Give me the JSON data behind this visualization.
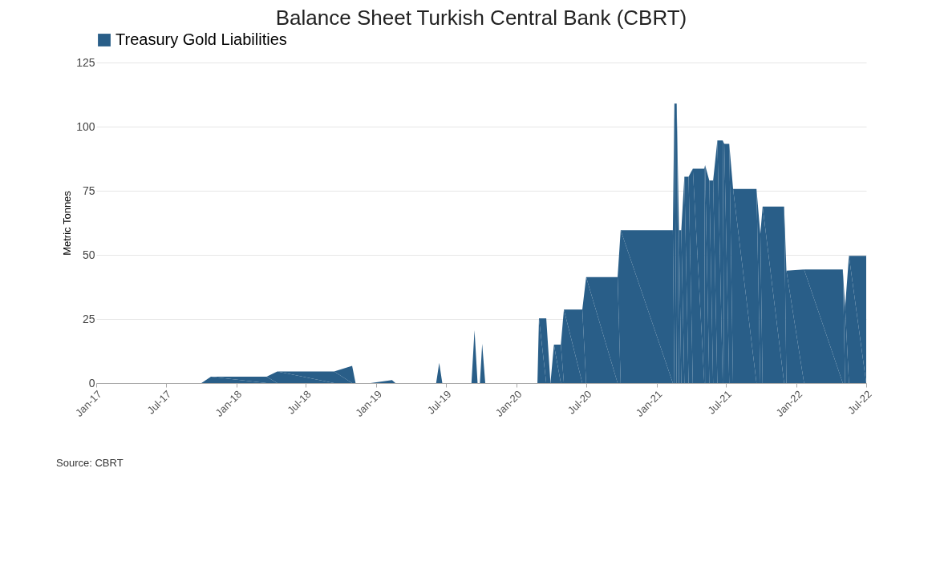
{
  "chart_data": {
    "type": "area",
    "title": "Balance Sheet Turkish Central Bank (CBRT)",
    "ylabel": "Metric Tonnes",
    "x": [
      "2017-01-01",
      "2017-10-02",
      "2017-10-27",
      "2018-03-21",
      "2018-04-18",
      "2018-09-13",
      "2018-10-30",
      "2018-11-08",
      "2018-12-17",
      "2019-02-11",
      "2019-02-20",
      "2019-06-06",
      "2019-06-14",
      "2019-06-22",
      "2019-09-06",
      "2019-09-14",
      "2019-09-22",
      "2019-09-28",
      "2019-10-04",
      "2019-10-12",
      "2020-02-25",
      "2020-02-29",
      "2020-03-19",
      "2020-03-30",
      "2020-04-08",
      "2020-04-26",
      "2020-05-04",
      "2020-06-21",
      "2020-07-01",
      "2020-09-21",
      "2020-09-29",
      "2021-02-12",
      "2021-02-16",
      "2021-02-22",
      "2021-02-28",
      "2021-03-06",
      "2021-03-14",
      "2021-03-25",
      "2021-04-05",
      "2021-05-05",
      "2021-05-07",
      "2021-05-18",
      "2021-05-28",
      "2021-06-08",
      "2021-06-22",
      "2021-06-26",
      "2021-07-09",
      "2021-07-19",
      "2021-09-18",
      "2021-09-28",
      "2021-10-04",
      "2021-11-29",
      "2021-12-05",
      "2022-01-20",
      "2022-05-01",
      "2022-05-07",
      "2022-05-17",
      "2022-07-01"
    ],
    "series": [
      {
        "name": "Treasury Gold Liabilities",
        "color": "#295e88",
        "values": [
          0,
          0,
          2.5,
          2.5,
          4.5,
          4.5,
          6.7,
          0,
          0,
          1.2,
          0,
          0,
          7.9,
          0,
          0,
          20.6,
          0,
          0,
          15.3,
          0,
          0,
          25.2,
          25.2,
          0,
          15,
          15,
          28.7,
          28.7,
          41.3,
          41.3,
          59.6,
          59.6,
          109,
          109,
          59.6,
          59.6,
          80.5,
          80.5,
          83.6,
          83.6,
          85,
          79,
          79,
          94.6,
          94.6,
          93.3,
          93.3,
          75.7,
          75.7,
          58.1,
          68.8,
          68.8,
          43.8,
          44.3,
          44.3,
          29.6,
          49.6,
          49.6
        ]
      }
    ],
    "xlim": [
      "2017-01-01",
      "2022-07-01"
    ],
    "xticks": [
      {
        "value": "2017-01-01",
        "label": "Jan-17"
      },
      {
        "value": "2017-07-01",
        "label": "Jul-17"
      },
      {
        "value": "2018-01-01",
        "label": "Jan-18"
      },
      {
        "value": "2018-07-01",
        "label": "Jul-18"
      },
      {
        "value": "2019-01-01",
        "label": "Jan-19"
      },
      {
        "value": "2019-07-01",
        "label": "Jul-19"
      },
      {
        "value": "2020-01-01",
        "label": "Jan-20"
      },
      {
        "value": "2020-07-01",
        "label": "Jul-20"
      },
      {
        "value": "2021-01-01",
        "label": "Jan-21"
      },
      {
        "value": "2021-07-01",
        "label": "Jul-21"
      },
      {
        "value": "2022-01-01",
        "label": "Jan-22"
      },
      {
        "value": "2022-07-01",
        "label": "Jul-22"
      }
    ],
    "ylim": [
      0,
      125
    ],
    "yticks": [
      0,
      25,
      50,
      75,
      100,
      125
    ],
    "grid": "y",
    "legend": "top",
    "annotations": [
      "Source: CBRT"
    ]
  }
}
